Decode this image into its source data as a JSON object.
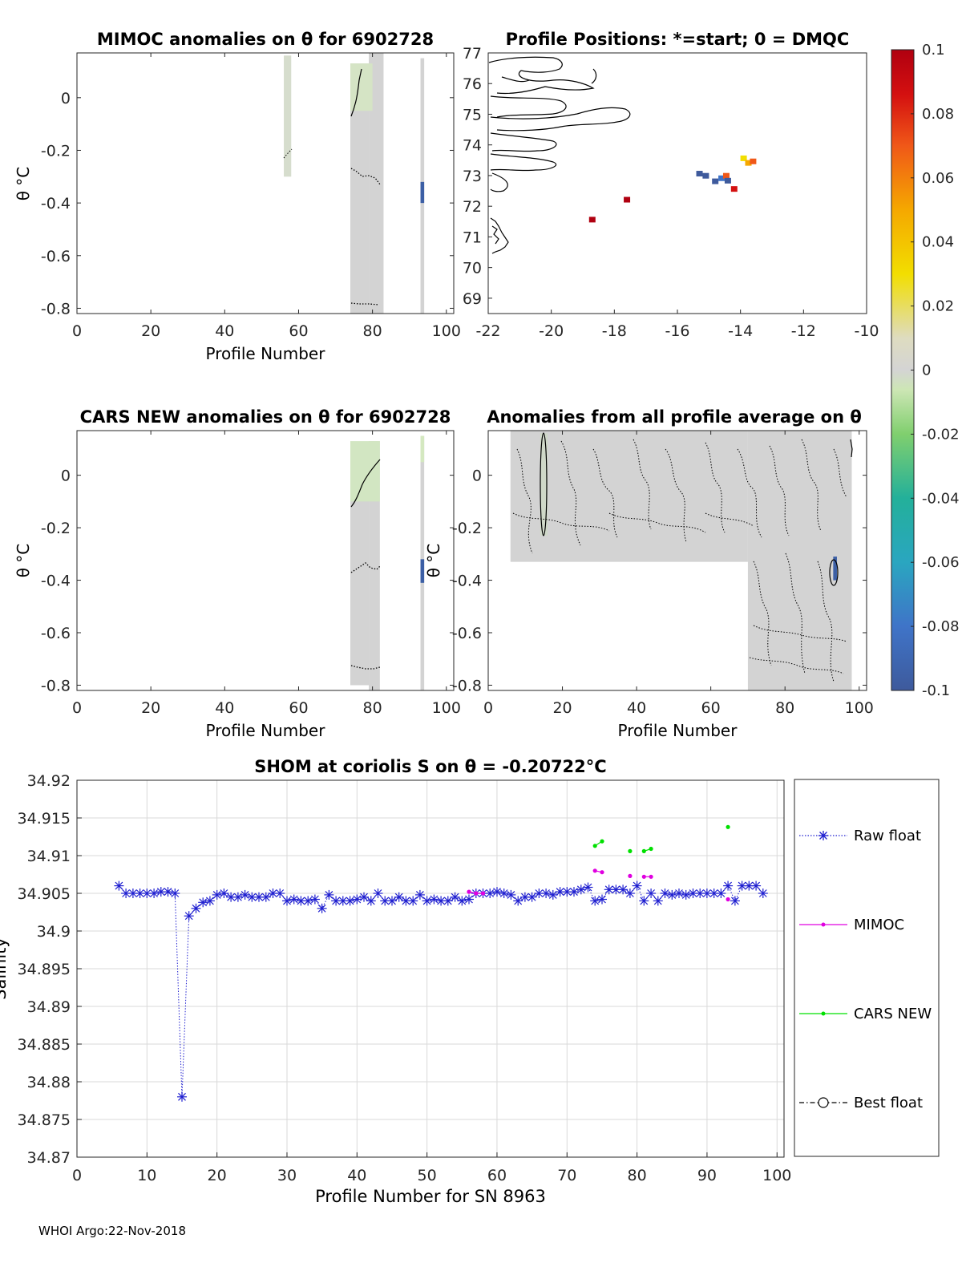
{
  "footer": "WHOI Argo:22-Nov-2018",
  "colors": {
    "raw": "#2020d0",
    "mimoc": "#e000e0",
    "cars": "#00e000",
    "grid": "#d9d9d9",
    "neutral": "#d4d4d4"
  },
  "chart_data": [
    {
      "id": "mimoc",
      "type": "heatmap",
      "title": "MIMOC anomalies on θ  for 6902728",
      "xlabel": "Profile Number",
      "ylabel": "θ °C",
      "xlim": [
        0,
        102
      ],
      "ylim": [
        -0.82,
        0.17
      ],
      "xticks": [
        0,
        20,
        40,
        60,
        80,
        100
      ],
      "yticks": [
        0,
        -0.2,
        -0.4,
        -0.6,
        -0.8
      ],
      "blocks": [
        {
          "x0": 56,
          "x1": 58,
          "y0": -0.3,
          "y1": 0.16,
          "value": 0.0,
          "color": "#d6ddcd"
        },
        {
          "x0": 74,
          "x1": 79,
          "y0": -0.82,
          "y1": 0.13,
          "value": 0.0,
          "color": "#d3d3d3"
        },
        {
          "x0": 79,
          "x1": 83,
          "y0": -0.82,
          "y1": 0.17,
          "value": 0.0,
          "color": "#d3d3d3"
        },
        {
          "x0": 74,
          "x1": 80,
          "y0": -0.05,
          "y1": 0.13,
          "value": -0.01,
          "color": "#d5e4c5"
        },
        {
          "x0": 93,
          "x1": 94,
          "y0": -0.82,
          "y1": 0.15,
          "value": 0.0,
          "color": "#d3d3d3"
        },
        {
          "x0": 93,
          "x1": 94,
          "y0": -0.4,
          "y1": -0.32,
          "value": -0.08,
          "color": "#3c5fa5"
        }
      ]
    },
    {
      "id": "positions",
      "type": "scatter",
      "title": "Profile Positions: *=start; 0 = DMQC",
      "xlim": [
        -22,
        -10
      ],
      "ylim": [
        68.5,
        77
      ],
      "xticks": [
        -22,
        -20,
        -18,
        -16,
        -14,
        -12,
        -10
      ],
      "yticks": [
        69,
        70,
        71,
        72,
        73,
        74,
        75,
        76,
        77
      ],
      "points": [
        {
          "lon": -18.7,
          "lat": 71.55,
          "value": 0.1
        },
        {
          "lon": -17.6,
          "lat": 72.2,
          "value": 0.1
        },
        {
          "lon": -15.3,
          "lat": 73.05,
          "value": -0.1
        },
        {
          "lon": -15.1,
          "lat": 72.98,
          "value": -0.1
        },
        {
          "lon": -14.8,
          "lat": 72.8,
          "value": -0.1
        },
        {
          "lon": -14.6,
          "lat": 72.9,
          "value": -0.09
        },
        {
          "lon": -14.45,
          "lat": 72.98,
          "value": 0.07
        },
        {
          "lon": -14.4,
          "lat": 72.82,
          "value": -0.1
        },
        {
          "lon": -14.2,
          "lat": 72.55,
          "value": 0.09
        },
        {
          "lon": -13.9,
          "lat": 73.55,
          "value": 0.03
        },
        {
          "lon": -13.75,
          "lat": 73.4,
          "value": 0.06
        },
        {
          "lon": -13.6,
          "lat": 73.45,
          "value": 0.07
        }
      ]
    },
    {
      "id": "colorbar",
      "type": "colorbar",
      "range": [
        -0.1,
        0.1
      ],
      "ticks": [
        "0.1",
        "0.08",
        "0.06",
        "0.04",
        "0.02",
        "0",
        "-0.02",
        "-0.04",
        "-0.06",
        "-0.08",
        "-0.1"
      ]
    },
    {
      "id": "cars",
      "type": "heatmap",
      "title": "CARS NEW anomalies on θ for 6902728",
      "xlabel": "Profile Number",
      "ylabel": "θ °C",
      "xlim": [
        0,
        102
      ],
      "ylim": [
        -0.82,
        0.17
      ],
      "xticks": [
        0,
        20,
        40,
        60,
        80,
        100
      ],
      "yticks": [
        0,
        -0.2,
        -0.4,
        -0.6,
        -0.8
      ],
      "blocks": [
        {
          "x0": 74,
          "x1": 79,
          "y0": -0.8,
          "y1": 0.11,
          "value": 0.0,
          "color": "#d3d3d3"
        },
        {
          "x0": 79,
          "x1": 82,
          "y0": -0.82,
          "y1": 0.13,
          "value": 0.0,
          "color": "#d3d3d3"
        },
        {
          "x0": 74,
          "x1": 82,
          "y0": -0.1,
          "y1": 0.13,
          "value": -0.01,
          "color": "#d2e6c2"
        },
        {
          "x0": 93,
          "x1": 94,
          "y0": -0.82,
          "y1": 0.15,
          "value": 0.0,
          "color": "#d3d3d3"
        },
        {
          "x0": 93,
          "x1": 94,
          "y0": 0.05,
          "y1": 0.15,
          "value": -0.01,
          "color": "#d4e8c0"
        },
        {
          "x0": 93,
          "x1": 94,
          "y0": -0.41,
          "y1": -0.32,
          "value": -0.08,
          "color": "#3c5fa5"
        }
      ]
    },
    {
      "id": "all-average",
      "type": "heatmap",
      "title": "Anomalies from all profile average on θ",
      "xlabel": "Profile Number",
      "ylabel": "θ °C",
      "xlim": [
        0,
        102
      ],
      "ylim": [
        -0.82,
        0.17
      ],
      "xticks": [
        0,
        20,
        40,
        60,
        80,
        100
      ],
      "yticks": [
        0,
        -0.2,
        -0.4,
        -0.6,
        -0.8
      ],
      "blocks": [
        {
          "x0": 6,
          "x1": 70,
          "y0": -0.33,
          "y1": 0.17,
          "value": 0.0,
          "color": "#d3d3d3"
        },
        {
          "x0": 70,
          "x1": 98,
          "y0": -0.82,
          "y1": 0.17,
          "value": 0.0,
          "color": "#d3d3d3"
        },
        {
          "x0": 14,
          "x1": 16,
          "y0": -0.23,
          "y1": 0.16,
          "value": 0.0,
          "color": "#cfd8c8"
        },
        {
          "x0": 93,
          "x1": 94,
          "y0": -0.4,
          "y1": -0.31,
          "value": -0.08,
          "color": "#3c5fa5"
        }
      ]
    },
    {
      "id": "salinity",
      "type": "line",
      "title": "SHOM at coriolis S on θ = -0.20722°C",
      "xlabel": "Profile Number for SN 8963",
      "ylabel": "Salinity",
      "xlim": [
        0,
        101
      ],
      "ylim": [
        34.87,
        34.92
      ],
      "xticks": [
        0,
        10,
        20,
        30,
        40,
        50,
        60,
        70,
        80,
        90,
        100
      ],
      "yticks": [
        "34.92",
        "34.915",
        "34.91",
        "34.905",
        "34.9",
        "34.895",
        "34.89",
        "34.885",
        "34.88",
        "34.875",
        "34.87"
      ],
      "legend": [
        "Raw float",
        "MIMOC",
        "CARS NEW",
        "Best float"
      ],
      "series": [
        {
          "name": "Raw float",
          "x": [
            6,
            7,
            8,
            9,
            10,
            11,
            12,
            13,
            14,
            15,
            16,
            17,
            18,
            19,
            20,
            21,
            22,
            23,
            24,
            25,
            26,
            27,
            28,
            29,
            30,
            31,
            32,
            33,
            34,
            35,
            36,
            37,
            38,
            39,
            40,
            41,
            42,
            43,
            44,
            45,
            46,
            47,
            48,
            49,
            50,
            51,
            52,
            53,
            54,
            55,
            56,
            57,
            58,
            59,
            60,
            61,
            62,
            63,
            64,
            65,
            66,
            67,
            68,
            69,
            70,
            71,
            72,
            73,
            74,
            75,
            76,
            77,
            78,
            79,
            80,
            81,
            82,
            83,
            84,
            85,
            86,
            87,
            88,
            89,
            90,
            91,
            92,
            93,
            94,
            95,
            96,
            97,
            98
          ],
          "y": [
            34.906,
            34.905,
            34.905,
            34.905,
            34.905,
            34.905,
            34.9052,
            34.9052,
            34.905,
            34.878,
            34.902,
            34.903,
            34.9038,
            34.904,
            34.9048,
            34.905,
            34.9045,
            34.9045,
            34.9048,
            34.9045,
            34.9045,
            34.9045,
            34.905,
            34.905,
            34.904,
            34.9042,
            34.904,
            34.904,
            34.9042,
            34.903,
            34.9048,
            34.904,
            34.904,
            34.904,
            34.9042,
            34.9045,
            34.904,
            34.905,
            34.904,
            34.904,
            34.9045,
            34.904,
            34.904,
            34.9048,
            34.904,
            34.9042,
            34.904,
            34.904,
            34.9045,
            34.904,
            34.9042,
            34.905,
            34.905,
            34.905,
            34.9052,
            34.905,
            34.9048,
            34.904,
            34.9045,
            34.9045,
            34.905,
            34.905,
            34.9048,
            34.9052,
            34.9052,
            34.9052,
            34.9055,
            34.9058,
            34.904,
            34.9042,
            34.9055,
            34.9055,
            34.9055,
            34.905,
            34.906,
            34.904,
            34.905,
            34.904,
            34.905,
            34.9048,
            34.905,
            34.9048,
            34.905,
            34.905,
            34.905,
            34.905,
            34.905,
            34.906,
            34.904,
            34.906,
            34.906,
            34.906,
            34.905
          ]
        },
        {
          "name": "MIMOC",
          "x": [
            56,
            57,
            58,
            74,
            75,
            79,
            81,
            82,
            93
          ],
          "y": [
            34.9052,
            34.905,
            34.905,
            34.908,
            34.9078,
            34.9073,
            34.9072,
            34.9072,
            34.9042
          ],
          "segments": [
            [
              0,
              2
            ],
            [
              3,
              4
            ],
            [
              6,
              7
            ]
          ]
        },
        {
          "name": "CARS NEW",
          "x": [
            74,
            75,
            79,
            81,
            82,
            93
          ],
          "y": [
            34.9113,
            34.9119,
            34.9106,
            34.9106,
            34.9109,
            34.9138
          ],
          "segments": [
            [
              0,
              1
            ],
            [
              3,
              4
            ]
          ]
        }
      ]
    }
  ]
}
